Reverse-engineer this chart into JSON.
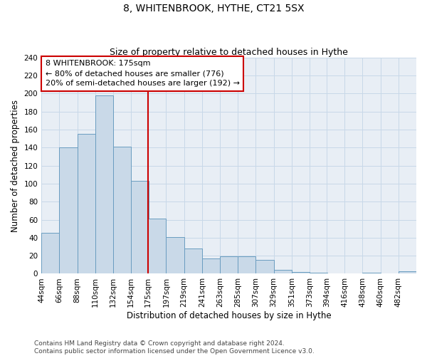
{
  "title": "8, WHITENBROOK, HYTHE, CT21 5SX",
  "subtitle": "Size of property relative to detached houses in Hythe",
  "xlabel": "Distribution of detached houses by size in Hythe",
  "ylabel": "Number of detached properties",
  "bin_labels": [
    "44sqm",
    "66sqm",
    "88sqm",
    "110sqm",
    "132sqm",
    "154sqm",
    "175sqm",
    "197sqm",
    "219sqm",
    "241sqm",
    "263sqm",
    "285sqm",
    "307sqm",
    "329sqm",
    "351sqm",
    "373sqm",
    "394sqm",
    "416sqm",
    "438sqm",
    "460sqm",
    "482sqm"
  ],
  "bin_edges": [
    44,
    66,
    88,
    110,
    132,
    154,
    175,
    197,
    219,
    241,
    263,
    285,
    307,
    329,
    351,
    373,
    394,
    416,
    438,
    460,
    482
  ],
  "bar_heights": [
    45,
    140,
    155,
    198,
    141,
    103,
    61,
    41,
    28,
    17,
    19,
    19,
    15,
    4,
    2,
    1,
    0,
    0,
    1,
    0,
    3
  ],
  "bar_fill": "#c9d9e8",
  "bar_edge": "#6a9dc0",
  "vline_x": 175,
  "vline_color": "#cc0000",
  "annotation_line1": "8 WHITENBROOK: 175sqm",
  "annotation_line2": "← 80% of detached houses are smaller (776)",
  "annotation_line3": "20% of semi-detached houses are larger (192) →",
  "annotation_box_edgecolor": "#cc0000",
  "annotation_box_facecolor": "#ffffff",
  "ylim": [
    0,
    240
  ],
  "yticks": [
    0,
    20,
    40,
    60,
    80,
    100,
    120,
    140,
    160,
    180,
    200,
    220,
    240
  ],
  "grid_color": "#c8d8e8",
  "background_color": "#e8eef5",
  "footer_text": "Contains HM Land Registry data © Crown copyright and database right 2024.\nContains public sector information licensed under the Open Government Licence v3.0.",
  "title_fontsize": 10,
  "subtitle_fontsize": 9,
  "axis_label_fontsize": 8.5,
  "tick_fontsize": 7.5,
  "annotation_fontsize": 8,
  "footer_fontsize": 6.5
}
